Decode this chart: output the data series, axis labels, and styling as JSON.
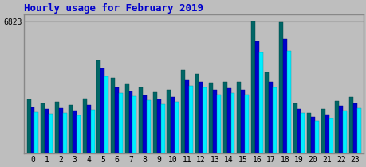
{
  "title": "Hourly usage for February 2019",
  "ymax": 6823,
  "ytick_label": "6823",
  "hours": [
    0,
    1,
    2,
    3,
    4,
    5,
    6,
    7,
    8,
    9,
    10,
    11,
    12,
    13,
    14,
    15,
    16,
    17,
    18,
    19,
    20,
    21,
    22,
    23
  ],
  "pages": [
    2800,
    2600,
    2650,
    2500,
    2850,
    4800,
    3900,
    3600,
    3400,
    3150,
    3300,
    4300,
    4100,
    3650,
    3700,
    3700,
    6823,
    4200,
    6750,
    2600,
    2100,
    2300,
    2700,
    2900
  ],
  "files": [
    2400,
    2300,
    2350,
    2200,
    2500,
    4400,
    3400,
    3200,
    3000,
    2800,
    2900,
    3800,
    3700,
    3300,
    3350,
    3300,
    5800,
    3700,
    5900,
    2300,
    1900,
    2000,
    2450,
    2600
  ],
  "hits": [
    2150,
    2050,
    2100,
    1950,
    2250,
    4000,
    3100,
    2950,
    2750,
    2550,
    2650,
    3500,
    3400,
    3050,
    3100,
    3050,
    5200,
    3400,
    5300,
    2100,
    1700,
    1800,
    2200,
    2350
  ],
  "color_pages": "#006666",
  "color_files": "#0000cc",
  "color_hits": "#00eeff",
  "background_plot": "#bebebe",
  "background_fig": "#bebebe",
  "title_color": "#0000cc",
  "ylabel_color_pages": "#006666",
  "ylabel_color_files": "#0000cc",
  "ylabel_color_hits": "#00eeff",
  "bar_width": 0.28,
  "grid_color": "#aaaaaa",
  "border_color": "#888888"
}
